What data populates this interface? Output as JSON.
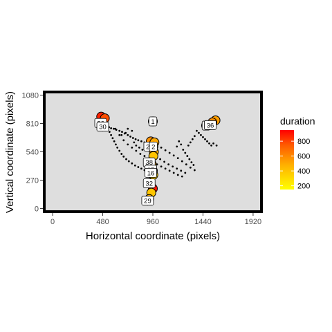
{
  "chart_data": {
    "type": "scatter",
    "title": "",
    "xlabel": "Horizontal coordinate (pixels)",
    "ylabel": "Vertical coordinate (pixels)",
    "xlim": [
      -80,
      2000
    ],
    "ylim": [
      -30,
      1110
    ],
    "x_ticks": [
      0,
      480,
      960,
      1440,
      1920
    ],
    "y_ticks": [
      0,
      270,
      540,
      810,
      1080
    ],
    "legend": {
      "title": "duration",
      "placement": "right",
      "min": 150,
      "max": 950,
      "ticks": [
        200,
        400,
        600,
        800
      ],
      "colors": [
        "#ffff00",
        "#ffb300",
        "#ff5a00",
        "#ff0000"
      ]
    },
    "fixations": [
      {
        "label": "1",
        "x": 960,
        "y": 830,
        "duration": 200
      },
      {
        "label": "",
        "x": 465,
        "y": 875,
        "duration": 850
      },
      {
        "label": "",
        "x": 500,
        "y": 860,
        "duration": 720
      },
      {
        "label": "26",
        "x": 460,
        "y": 815,
        "duration": 760
      },
      {
        "label": "",
        "x": 480,
        "y": 800,
        "duration": 680
      },
      {
        "label": "30",
        "x": 480,
        "y": 780,
        "duration": 560
      },
      {
        "label": "",
        "x": 940,
        "y": 640,
        "duration": 520
      },
      {
        "label": "",
        "x": 975,
        "y": 630,
        "duration": 450
      },
      {
        "label": "23",
        "x": 930,
        "y": 590,
        "duration": 380
      },
      {
        "label": "2",
        "x": 965,
        "y": 590,
        "duration": 320
      },
      {
        "label": "",
        "x": 970,
        "y": 540,
        "duration": 420
      },
      {
        "label": "",
        "x": 965,
        "y": 500,
        "duration": 360
      },
      {
        "label": "38",
        "x": 925,
        "y": 440,
        "duration": 300
      },
      {
        "label": "",
        "x": 950,
        "y": 420,
        "duration": 400
      },
      {
        "label": "37",
        "x": 940,
        "y": 370,
        "duration": 330
      },
      {
        "label": "",
        "x": 960,
        "y": 360,
        "duration": 280
      },
      {
        "label": "16",
        "x": 940,
        "y": 340,
        "duration": 250
      },
      {
        "label": "",
        "x": 965,
        "y": 320,
        "duration": 310
      },
      {
        "label": "32",
        "x": 925,
        "y": 240,
        "duration": 280
      },
      {
        "label": "",
        "x": 960,
        "y": 190,
        "duration": 900
      },
      {
        "label": "",
        "x": 945,
        "y": 150,
        "duration": 350
      },
      {
        "label": "",
        "x": 925,
        "y": 90,
        "duration": 420
      },
      {
        "label": "29",
        "x": 910,
        "y": 75,
        "duration": 260
      },
      {
        "label": "",
        "x": 1560,
        "y": 840,
        "duration": 480
      },
      {
        "label": "",
        "x": 1530,
        "y": 820,
        "duration": 520
      },
      {
        "label": "3",
        "x": 1470,
        "y": 790,
        "duration": 300
      },
      {
        "label": "36",
        "x": 1510,
        "y": 795,
        "duration": 460
      }
    ],
    "gaze_points": [
      {
        "x": 520,
        "y": 790
      },
      {
        "x": 540,
        "y": 775
      },
      {
        "x": 560,
        "y": 765
      },
      {
        "x": 585,
        "y": 760
      },
      {
        "x": 610,
        "y": 750
      },
      {
        "x": 640,
        "y": 740
      },
      {
        "x": 665,
        "y": 730
      },
      {
        "x": 690,
        "y": 715
      },
      {
        "x": 720,
        "y": 700
      },
      {
        "x": 745,
        "y": 685
      },
      {
        "x": 770,
        "y": 672
      },
      {
        "x": 795,
        "y": 660
      },
      {
        "x": 820,
        "y": 650
      },
      {
        "x": 850,
        "y": 640
      },
      {
        "x": 880,
        "y": 630
      },
      {
        "x": 905,
        "y": 625
      },
      {
        "x": 530,
        "y": 760
      },
      {
        "x": 545,
        "y": 730
      },
      {
        "x": 560,
        "y": 700
      },
      {
        "x": 575,
        "y": 670
      },
      {
        "x": 590,
        "y": 640
      },
      {
        "x": 605,
        "y": 610
      },
      {
        "x": 620,
        "y": 580
      },
      {
        "x": 640,
        "y": 550
      },
      {
        "x": 660,
        "y": 520
      },
      {
        "x": 680,
        "y": 495
      },
      {
        "x": 705,
        "y": 470
      },
      {
        "x": 730,
        "y": 450
      },
      {
        "x": 760,
        "y": 430
      },
      {
        "x": 790,
        "y": 410
      },
      {
        "x": 820,
        "y": 395
      },
      {
        "x": 850,
        "y": 380
      },
      {
        "x": 880,
        "y": 365
      },
      {
        "x": 910,
        "y": 350
      },
      {
        "x": 600,
        "y": 760
      },
      {
        "x": 640,
        "y": 700
      },
      {
        "x": 680,
        "y": 650
      },
      {
        "x": 720,
        "y": 610
      },
      {
        "x": 760,
        "y": 580
      },
      {
        "x": 800,
        "y": 550
      },
      {
        "x": 840,
        "y": 520
      },
      {
        "x": 880,
        "y": 500
      },
      {
        "x": 1000,
        "y": 600
      },
      {
        "x": 1040,
        "y": 580
      },
      {
        "x": 1080,
        "y": 555
      },
      {
        "x": 1120,
        "y": 530
      },
      {
        "x": 1160,
        "y": 505
      },
      {
        "x": 1200,
        "y": 480
      },
      {
        "x": 1240,
        "y": 450
      },
      {
        "x": 1280,
        "y": 420
      },
      {
        "x": 1320,
        "y": 390
      },
      {
        "x": 1360,
        "y": 365
      },
      {
        "x": 990,
        "y": 500
      },
      {
        "x": 1030,
        "y": 470
      },
      {
        "x": 1070,
        "y": 445
      },
      {
        "x": 1110,
        "y": 420
      },
      {
        "x": 1150,
        "y": 400
      },
      {
        "x": 1190,
        "y": 380
      },
      {
        "x": 1230,
        "y": 360
      },
      {
        "x": 1270,
        "y": 340
      },
      {
        "x": 1000,
        "y": 420
      },
      {
        "x": 1040,
        "y": 400
      },
      {
        "x": 1080,
        "y": 380
      },
      {
        "x": 1120,
        "y": 360
      },
      {
        "x": 1160,
        "y": 340
      },
      {
        "x": 1200,
        "y": 320
      },
      {
        "x": 1240,
        "y": 305
      },
      {
        "x": 1380,
        "y": 740
      },
      {
        "x": 1400,
        "y": 720
      },
      {
        "x": 1420,
        "y": 700
      },
      {
        "x": 1440,
        "y": 680
      },
      {
        "x": 1460,
        "y": 660
      },
      {
        "x": 1480,
        "y": 640
      },
      {
        "x": 1500,
        "y": 620
      },
      {
        "x": 1520,
        "y": 600
      },
      {
        "x": 1540,
        "y": 620
      },
      {
        "x": 1570,
        "y": 600
      },
      {
        "x": 1300,
        "y": 600
      },
      {
        "x": 1320,
        "y": 630
      },
      {
        "x": 1340,
        "y": 660
      },
      {
        "x": 1360,
        "y": 690
      },
      {
        "x": 1250,
        "y": 560
      },
      {
        "x": 1270,
        "y": 530
      },
      {
        "x": 1290,
        "y": 500
      },
      {
        "x": 1310,
        "y": 470
      },
      {
        "x": 1330,
        "y": 440
      },
      {
        "x": 1350,
        "y": 415
      },
      {
        "x": 1210,
        "y": 640
      },
      {
        "x": 1230,
        "y": 610
      },
      {
        "x": 1190,
        "y": 590
      },
      {
        "x": 780,
        "y": 630
      },
      {
        "x": 800,
        "y": 600
      },
      {
        "x": 830,
        "y": 580
      },
      {
        "x": 860,
        "y": 560
      },
      {
        "x": 720,
        "y": 760
      },
      {
        "x": 760,
        "y": 740
      },
      {
        "x": 700,
        "y": 720
      },
      {
        "x": 660,
        "y": 700
      }
    ]
  }
}
